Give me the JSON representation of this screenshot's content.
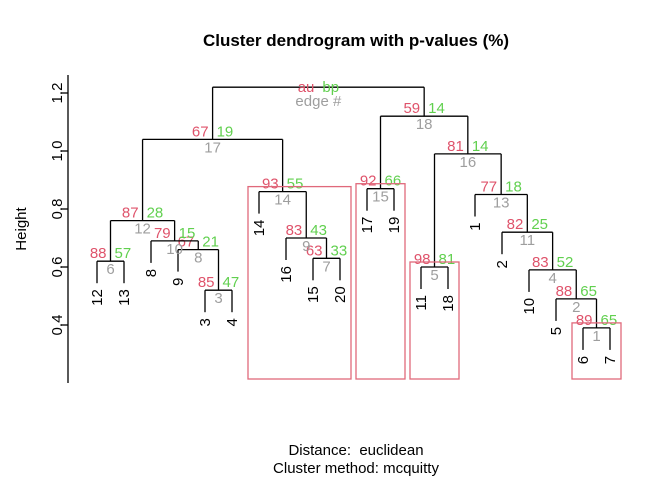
{
  "chart_data": {
    "type": "dendrogram",
    "title": "Cluster dendrogram with p-values (%)",
    "ylabel": "Height",
    "yticks": [
      "0.4",
      "0.6",
      "0.8",
      "1.0",
      "1.2"
    ],
    "ylim": [
      0.4,
      1.2
    ],
    "footer": {
      "distance": "Distance:  euclidean",
      "method": "Cluster method: mcquitty"
    },
    "legend": {
      "au_label": "au",
      "bp_label": "bp",
      "edge_label": "edge #"
    },
    "colors": {
      "au": "#DF536B",
      "bp": "#61D04F",
      "edge": "#9E9E9E",
      "line": "#000000",
      "rect": "#E0697B"
    },
    "leaves": [
      "12",
      "13",
      "8",
      "9",
      "3",
      "4",
      "14",
      "16",
      "15",
      "20",
      "17",
      "19",
      "11",
      "18",
      "1",
      "2",
      "10",
      "5",
      "6",
      "7"
    ],
    "nodes": [
      {
        "edge": 1,
        "au": 89,
        "bp": 65,
        "height": 0.39,
        "children": [
          {
            "leaf": "6"
          },
          {
            "leaf": "7"
          }
        ]
      },
      {
        "edge": 2,
        "au": 88,
        "bp": 65,
        "height": 0.49,
        "children": [
          {
            "leaf": "5"
          },
          {
            "node": 1
          }
        ]
      },
      {
        "edge": 3,
        "au": 85,
        "bp": 47,
        "height": 0.52,
        "children": [
          {
            "leaf": "3"
          },
          {
            "leaf": "4"
          }
        ]
      },
      {
        "edge": 4,
        "au": 83,
        "bp": 52,
        "height": 0.59,
        "children": [
          {
            "leaf": "10"
          },
          {
            "node": 2
          }
        ]
      },
      {
        "edge": 5,
        "au": 98,
        "bp": 81,
        "height": 0.6,
        "children": [
          {
            "leaf": "11"
          },
          {
            "leaf": "18"
          }
        ]
      },
      {
        "edge": 6,
        "au": 88,
        "bp": 57,
        "height": 0.62,
        "children": [
          {
            "leaf": "12"
          },
          {
            "leaf": "13"
          }
        ]
      },
      {
        "edge": 7,
        "au": 63,
        "bp": 33,
        "height": 0.63,
        "children": [
          {
            "leaf": "15"
          },
          {
            "leaf": "20"
          }
        ]
      },
      {
        "edge": 8,
        "au": 67,
        "bp": 21,
        "height": 0.66,
        "children": [
          {
            "leaf": "9"
          },
          {
            "node": 3
          }
        ]
      },
      {
        "edge": 9,
        "au": 83,
        "bp": 43,
        "height": 0.7,
        "children": [
          {
            "leaf": "16"
          },
          {
            "node": 7
          }
        ]
      },
      {
        "edge": 10,
        "au": 79,
        "bp": 15,
        "height": 0.69,
        "children": [
          {
            "leaf": "8"
          },
          {
            "node": 8
          }
        ]
      },
      {
        "edge": 11,
        "au": 82,
        "bp": 25,
        "height": 0.72,
        "children": [
          {
            "leaf": "2"
          },
          {
            "node": 4
          }
        ]
      },
      {
        "edge": 12,
        "au": 87,
        "bp": 28,
        "height": 0.76,
        "children": [
          {
            "node": 6
          },
          {
            "node": 10
          }
        ]
      },
      {
        "edge": 13,
        "au": 77,
        "bp": 18,
        "height": 0.85,
        "children": [
          {
            "leaf": "1"
          },
          {
            "node": 11
          }
        ]
      },
      {
        "edge": 14,
        "au": 93,
        "bp": 55,
        "height": 0.86,
        "children": [
          {
            "leaf": "14"
          },
          {
            "node": 9
          }
        ]
      },
      {
        "edge": 15,
        "au": 92,
        "bp": 66,
        "height": 0.87,
        "children": [
          {
            "leaf": "17"
          },
          {
            "leaf": "19"
          }
        ]
      },
      {
        "edge": 16,
        "au": 81,
        "bp": 14,
        "height": 0.99,
        "children": [
          {
            "node": 5
          },
          {
            "node": 13
          }
        ]
      },
      {
        "edge": 17,
        "au": 67,
        "bp": 19,
        "height": 1.04,
        "children": [
          {
            "node": 12
          },
          {
            "node": 14
          }
        ]
      },
      {
        "edge": 18,
        "au": 59,
        "bp": 14,
        "height": 1.12,
        "children": [
          {
            "node": 15
          },
          {
            "node": 16
          }
        ]
      },
      {
        "edge": 19,
        "root_legend": true,
        "height": 1.22,
        "children": [
          {
            "node": 17
          },
          {
            "node": 18
          }
        ]
      }
    ],
    "highlighted_clusters": [
      14,
      15,
      5,
      1
    ]
  }
}
